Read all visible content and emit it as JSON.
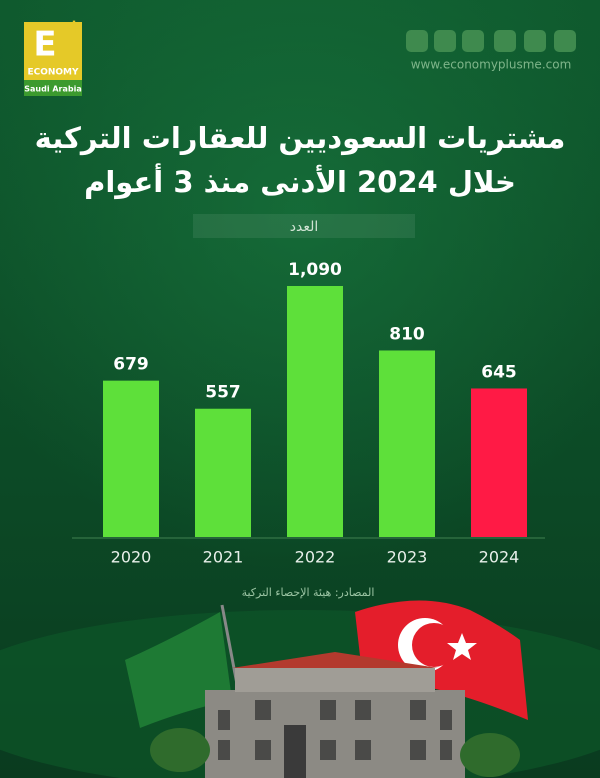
{
  "header": {
    "logo_letter": "E",
    "logo_name": "ECONOMY",
    "logo_region": "Saudi Arabia",
    "website": "www.economyplusme.com"
  },
  "chart_data": {
    "type": "bar",
    "title": "مشتريات السعوديين للعقارات التركية",
    "subtitle": "خلال 2024 الأدنى منذ 3 أعوام",
    "y_label": "العدد",
    "categories": [
      "2020",
      "2021",
      "2022",
      "2023",
      "2024"
    ],
    "values": [
      679,
      557,
      1090,
      810,
      645
    ],
    "value_labels": [
      "679",
      "557",
      "1,090",
      "810",
      "645"
    ],
    "colors": [
      "#5ee03a",
      "#5ee03a",
      "#5ee03a",
      "#5ee03a",
      "#ff1a45"
    ],
    "source": "المصادر: هيئة الإحصاء التركية"
  }
}
